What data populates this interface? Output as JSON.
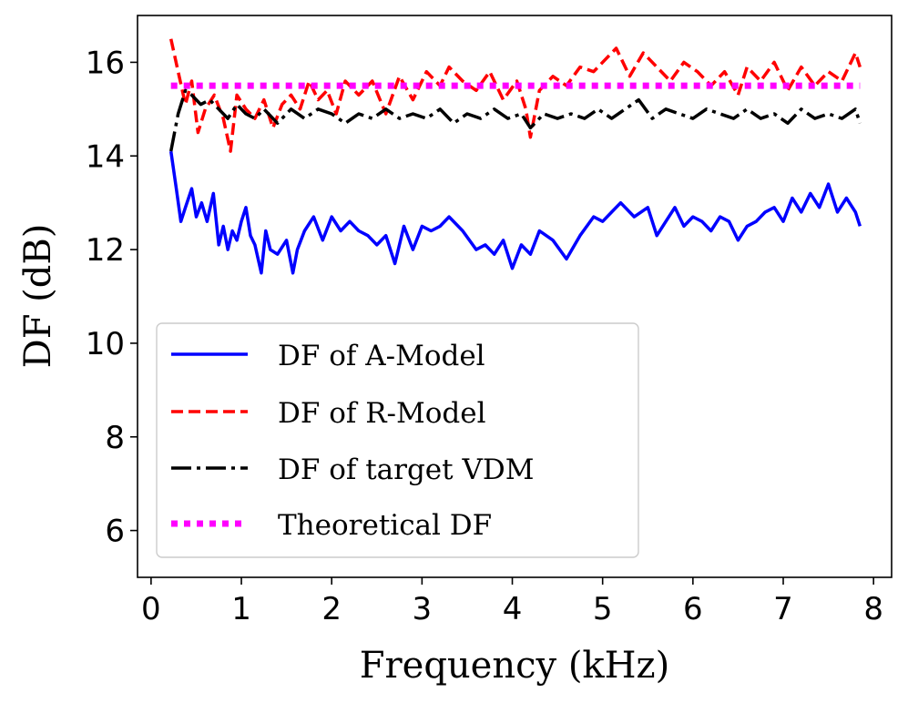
{
  "chart_data": {
    "type": "line",
    "title": "",
    "xlabel": "Frequency (kHz)",
    "ylabel": "DF (dB)",
    "xlim": [
      -0.15,
      8.2
    ],
    "ylim": [
      5,
      17
    ],
    "xticks": [
      0,
      1,
      2,
      3,
      4,
      5,
      6,
      7,
      8
    ],
    "yticks": [
      6,
      8,
      10,
      12,
      14,
      16
    ],
    "grid": false,
    "legend_position": "lower-left",
    "series": [
      {
        "name": "DF of A-Model",
        "color": "#0000ff",
        "style": "solid",
        "x": [
          0.22,
          0.28,
          0.33,
          0.38,
          0.45,
          0.5,
          0.56,
          0.62,
          0.69,
          0.75,
          0.8,
          0.85,
          0.9,
          0.95,
          1.0,
          1.05,
          1.1,
          1.15,
          1.22,
          1.27,
          1.32,
          1.4,
          1.5,
          1.57,
          1.62,
          1.7,
          1.8,
          1.9,
          2.0,
          2.1,
          2.2,
          2.3,
          2.4,
          2.5,
          2.6,
          2.7,
          2.8,
          2.9,
          3.0,
          3.1,
          3.2,
          3.3,
          3.45,
          3.6,
          3.7,
          3.8,
          3.9,
          4.0,
          4.1,
          4.2,
          4.3,
          4.45,
          4.6,
          4.75,
          4.9,
          5.0,
          5.1,
          5.2,
          5.35,
          5.5,
          5.6,
          5.7,
          5.8,
          5.9,
          6.0,
          6.1,
          6.2,
          6.3,
          6.4,
          6.5,
          6.6,
          6.7,
          6.8,
          6.9,
          7.0,
          7.1,
          7.2,
          7.3,
          7.4,
          7.5,
          7.6,
          7.7,
          7.8,
          7.85
        ],
        "y": [
          14.1,
          13.3,
          12.6,
          12.9,
          13.3,
          12.7,
          13.0,
          12.6,
          13.2,
          12.1,
          12.5,
          12.0,
          12.4,
          12.2,
          12.6,
          12.9,
          12.3,
          12.1,
          11.5,
          12.4,
          12.0,
          11.9,
          12.2,
          11.5,
          12.0,
          12.4,
          12.7,
          12.2,
          12.7,
          12.4,
          12.6,
          12.4,
          12.3,
          12.1,
          12.3,
          11.7,
          12.5,
          12.0,
          12.5,
          12.4,
          12.5,
          12.7,
          12.4,
          12.0,
          12.1,
          11.9,
          12.2,
          11.6,
          12.1,
          11.9,
          12.4,
          12.2,
          11.8,
          12.3,
          12.7,
          12.6,
          12.8,
          13.0,
          12.7,
          12.9,
          12.3,
          12.6,
          12.9,
          12.5,
          12.7,
          12.6,
          12.4,
          12.7,
          12.6,
          12.2,
          12.5,
          12.6,
          12.8,
          12.9,
          12.6,
          13.1,
          12.8,
          13.2,
          12.9,
          13.4,
          12.8,
          13.1,
          12.8,
          12.5
        ]
      },
      {
        "name": "DF of R-Model",
        "color": "#ff0000",
        "style": "dashed",
        "x": [
          0.22,
          0.3,
          0.38,
          0.45,
          0.52,
          0.6,
          0.7,
          0.8,
          0.88,
          0.95,
          1.05,
          1.15,
          1.25,
          1.35,
          1.45,
          1.55,
          1.65,
          1.75,
          1.85,
          1.95,
          2.05,
          2.15,
          2.3,
          2.45,
          2.6,
          2.75,
          2.9,
          3.05,
          3.2,
          3.3,
          3.45,
          3.6,
          3.75,
          3.9,
          4.05,
          4.15,
          4.2,
          4.3,
          4.45,
          4.6,
          4.75,
          4.9,
          5.05,
          5.15,
          5.3,
          5.45,
          5.6,
          5.75,
          5.9,
          6.05,
          6.2,
          6.35,
          6.5,
          6.6,
          6.75,
          6.9,
          7.05,
          7.2,
          7.35,
          7.5,
          7.65,
          7.8,
          7.85
        ],
        "y": [
          16.5,
          15.8,
          15.1,
          15.6,
          14.5,
          15.0,
          15.3,
          14.8,
          14.1,
          15.3,
          15.0,
          14.8,
          15.2,
          14.6,
          15.1,
          15.3,
          15.0,
          15.6,
          15.2,
          15.4,
          14.9,
          15.6,
          15.3,
          15.6,
          14.9,
          15.7,
          15.2,
          15.8,
          15.5,
          15.9,
          15.6,
          15.4,
          15.8,
          15.2,
          15.6,
          15.0,
          14.4,
          15.4,
          15.7,
          15.5,
          15.9,
          15.8,
          16.1,
          16.3,
          15.7,
          16.2,
          15.9,
          15.6,
          16.0,
          15.8,
          15.5,
          15.8,
          15.3,
          15.9,
          15.6,
          16.0,
          15.4,
          15.9,
          15.5,
          15.8,
          15.6,
          16.2,
          15.9
        ]
      },
      {
        "name": "DF of target VDM",
        "color": "#000000",
        "style": "dashdot",
        "x": [
          0.22,
          0.3,
          0.38,
          0.45,
          0.55,
          0.65,
          0.75,
          0.85,
          0.95,
          1.05,
          1.15,
          1.25,
          1.4,
          1.55,
          1.7,
          1.85,
          2.0,
          2.15,
          2.3,
          2.45,
          2.6,
          2.75,
          2.9,
          3.05,
          3.2,
          3.35,
          3.5,
          3.65,
          3.8,
          3.95,
          4.1,
          4.2,
          4.35,
          4.5,
          4.65,
          4.8,
          4.95,
          5.1,
          5.25,
          5.4,
          5.55,
          5.7,
          5.85,
          6.0,
          6.15,
          6.3,
          6.45,
          6.6,
          6.75,
          6.9,
          7.05,
          7.2,
          7.35,
          7.5,
          7.65,
          7.8,
          7.85
        ],
        "y": [
          14.1,
          14.9,
          15.4,
          15.3,
          15.1,
          15.2,
          15.0,
          14.8,
          15.1,
          14.9,
          14.8,
          15.0,
          14.7,
          15.0,
          14.8,
          15.0,
          14.9,
          14.7,
          14.9,
          14.8,
          15.0,
          14.8,
          14.9,
          14.8,
          15.0,
          14.7,
          14.9,
          14.8,
          15.0,
          14.8,
          14.9,
          14.6,
          14.9,
          14.8,
          14.9,
          14.8,
          15.0,
          14.8,
          15.0,
          15.2,
          14.8,
          15.0,
          14.9,
          14.8,
          15.0,
          14.9,
          14.8,
          15.0,
          14.8,
          14.9,
          14.7,
          15.0,
          14.8,
          14.9,
          14.8,
          15.0,
          14.7
        ]
      },
      {
        "name": "Theoretical DF",
        "color": "#ff00ff",
        "style": "dotted",
        "x": [
          0.22,
          7.85
        ],
        "y": [
          15.5,
          15.5
        ]
      }
    ]
  }
}
